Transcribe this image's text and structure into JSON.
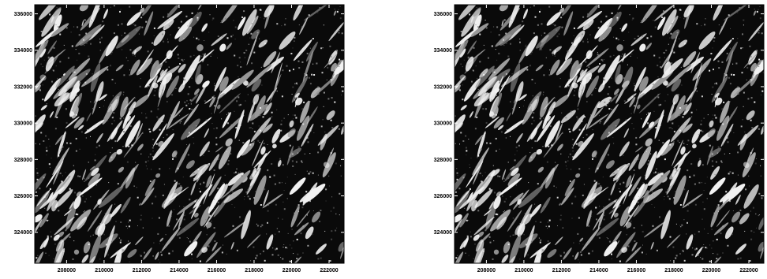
{
  "figure": {
    "panels": [
      {
        "id": "left",
        "y_ticks": [
          "336000",
          "334000",
          "332000",
          "330000",
          "328000",
          "326000",
          "324000"
        ],
        "x_ticks": [
          "208000",
          "210000",
          "212000",
          "214000",
          "216000",
          "218000",
          "220000",
          "222000"
        ],
        "y_tick_values": [
          336000,
          334000,
          332000,
          330000,
          328000,
          326000,
          324000
        ],
        "x_tick_values": [
          208000,
          210000,
          212000,
          214000,
          216000,
          218000,
          220000,
          222000
        ],
        "y_range": [
          322300,
          336500
        ],
        "x_range": [
          206300,
          222800
        ],
        "render": "hillshade",
        "seed": 7,
        "light": 0.38
      },
      {
        "id": "right",
        "y_ticks": [
          "336000",
          "334000",
          "332000",
          "330000",
          "328000",
          "326000",
          "324000"
        ],
        "x_ticks": [
          "208000",
          "210000",
          "212000",
          "214000",
          "216000",
          "218000",
          "220000",
          "222000"
        ],
        "y_tick_values": [
          336000,
          334000,
          332000,
          330000,
          328000,
          326000,
          324000
        ],
        "x_tick_values": [
          208000,
          210000,
          212000,
          214000,
          216000,
          218000,
          220000,
          222000
        ],
        "y_range": [
          322300,
          336500
        ],
        "x_range": [
          206300,
          222800
        ],
        "render": "hillshade",
        "seed": 7,
        "light": 0.48
      }
    ],
    "colors": {
      "shadow": "#0a0a0a",
      "lit": "#f2f2f2",
      "frame": "#000000",
      "background": "#ffffff"
    }
  }
}
